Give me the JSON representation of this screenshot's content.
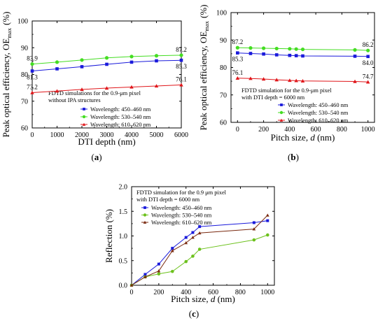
{
  "figure": {
    "panels": [
      {
        "key": "a",
        "label_pre": "(",
        "label_letter": "a",
        "label_post": ")"
      },
      {
        "key": "b",
        "label_pre": "(",
        "label_letter": "b",
        "label_post": ")"
      },
      {
        "key": "c",
        "label_pre": "(",
        "label_letter": "c",
        "label_post": ")"
      }
    ]
  },
  "colors": {
    "blue": "#1a1adb",
    "green": "#44dd22",
    "red": "#e0161a",
    "brown": "#7a2a10",
    "green_c": "#6cc11c"
  },
  "chart_data": [
    {
      "id": "a",
      "type": "line",
      "xlabel": "DTI depth (nm)",
      "ylabel": "Peak optical efficiency, OEmax (%)",
      "ylabel_main": "Peak optical efficiency, OE",
      "ylabel_sub": "max",
      "ylabel_unit": "(%)",
      "xlim": [
        0,
        6000
      ],
      "ylim": [
        60,
        100
      ],
      "xticks": [
        0,
        1000,
        2000,
        3000,
        4000,
        5000,
        6000
      ],
      "yticks": [
        60,
        70,
        80,
        90,
        100
      ],
      "annotation": [
        "FDTD simulations for the 0.9-μm pixel",
        "without IPA structures"
      ],
      "legend_position": "lower-right",
      "grid": false,
      "x": [
        0,
        1000,
        2000,
        3000,
        4000,
        5000,
        6000
      ],
      "series": [
        {
          "name": "Wavelength: 450–460 nm",
          "color": "#1a1adb",
          "marker": "square",
          "values": [
            81.3,
            82.1,
            82.9,
            83.8,
            84.6,
            85.1,
            85.3
          ]
        },
        {
          "name": "Wavelength: 530–540 nm",
          "color": "#44dd22",
          "marker": "circle",
          "values": [
            83.9,
            84.6,
            85.4,
            86.2,
            86.7,
            87.0,
            87.2
          ]
        },
        {
          "name": "Wavelength: 610–620 nm",
          "color": "#e0161a",
          "marker": "triangle",
          "values": [
            73.2,
            73.8,
            74.4,
            74.9,
            75.3,
            75.7,
            76.1
          ]
        }
      ],
      "data_labels": [
        {
          "text": "83.9",
          "series": 1,
          "index": 0,
          "pos": "above"
        },
        {
          "text": "81.3",
          "series": 0,
          "index": 0,
          "pos": "below"
        },
        {
          "text": "73.2",
          "series": 2,
          "index": 0,
          "pos": "above"
        },
        {
          "text": "87.2",
          "series": 1,
          "index": 6,
          "pos": "above"
        },
        {
          "text": "85.3",
          "series": 0,
          "index": 6,
          "pos": "below"
        },
        {
          "text": "76.1",
          "series": 2,
          "index": 6,
          "pos": "above"
        }
      ]
    },
    {
      "id": "b",
      "type": "line",
      "xlabel_main": "Pitch size, ",
      "xlabel_italic": "d",
      "xlabel_unit": " (nm)",
      "ylabel_main": "Peak optical efficiency, OE",
      "ylabel_sub": "max",
      "ylabel_unit": "(%)",
      "xlim": [
        -50,
        1050
      ],
      "ylim": [
        60,
        100
      ],
      "xticks": [
        0,
        200,
        400,
        600,
        800,
        1000
      ],
      "yticks": [
        60,
        70,
        80,
        90,
        100
      ],
      "annotation": [
        "FDTD simulation for the 0.9-μm pixel",
        "with DTI depth = 6000 nm"
      ],
      "legend_position": "lower-right",
      "grid": false,
      "x": [
        0,
        100,
        200,
        300,
        400,
        450,
        500,
        900,
        1000
      ],
      "series": [
        {
          "name": "Wavelength: 450–460 nm",
          "color": "#1a1adb",
          "marker": "square",
          "values": [
            85.3,
            85.1,
            84.9,
            84.6,
            84.4,
            84.3,
            84.2,
            84.1,
            84.0
          ]
        },
        {
          "name": "Wavelength: 530–540 nm",
          "color": "#44dd22",
          "marker": "circle",
          "values": [
            87.2,
            87.1,
            87.0,
            86.9,
            86.8,
            86.7,
            86.6,
            86.4,
            86.2
          ]
        },
        {
          "name": "Wavelength: 610–620 nm",
          "color": "#e0161a",
          "marker": "triangle",
          "values": [
            76.1,
            76.0,
            75.8,
            75.5,
            75.3,
            75.2,
            75.1,
            74.9,
            74.7
          ]
        }
      ],
      "data_labels": [
        {
          "text": "87.2",
          "series": 1,
          "index": 0,
          "pos": "above"
        },
        {
          "text": "85.3",
          "series": 0,
          "index": 0,
          "pos": "below"
        },
        {
          "text": "76.1",
          "series": 2,
          "index": 0,
          "pos": "above"
        },
        {
          "text": "86.2",
          "series": 1,
          "index": 8,
          "pos": "above"
        },
        {
          "text": "84.0",
          "series": 0,
          "index": 8,
          "pos": "below"
        },
        {
          "text": "74.7",
          "series": 2,
          "index": 8,
          "pos": "above"
        }
      ]
    },
    {
      "id": "c",
      "type": "line",
      "xlabel_main": "Pitch size, ",
      "xlabel_italic": "d",
      "xlabel_unit": " (nm)",
      "ylabel": "Reflection (%)",
      "xlim": [
        0,
        1050
      ],
      "ylim": [
        0,
        2.0
      ],
      "xticks": [
        0,
        200,
        400,
        600,
        800,
        1000
      ],
      "yticks": [
        0.0,
        0.5,
        1.0,
        1.5,
        2.0
      ],
      "ytick_labels": [
        "0.0",
        "0.5",
        "1.0",
        "1.5",
        "2.0"
      ],
      "annotation": [
        "FDTD simulation for the 0.9 μm pixel",
        "with DTI depth = 6000 nm"
      ],
      "legend_position": "top-left",
      "grid": false,
      "x": [
        0,
        100,
        200,
        300,
        400,
        450,
        500,
        900,
        1000
      ],
      "series": [
        {
          "name": "Wavelength: 450–460 nm",
          "color": "#1a1adb",
          "marker": "square",
          "values": [
            0.0,
            0.22,
            0.43,
            0.75,
            0.97,
            1.07,
            1.19,
            1.27,
            1.31
          ]
        },
        {
          "name": "Wavelength: 530–540 nm",
          "color": "#6cc11c",
          "marker": "circle",
          "values": [
            0.0,
            0.17,
            0.23,
            0.28,
            0.48,
            0.59,
            0.73,
            0.92,
            1.02
          ]
        },
        {
          "name": "Wavelength: 610–620 nm",
          "color": "#7a2a10",
          "marker": "triangle",
          "values": [
            0.0,
            0.17,
            0.29,
            0.7,
            0.86,
            0.97,
            1.06,
            1.14,
            1.42
          ]
        }
      ],
      "data_labels": []
    }
  ]
}
